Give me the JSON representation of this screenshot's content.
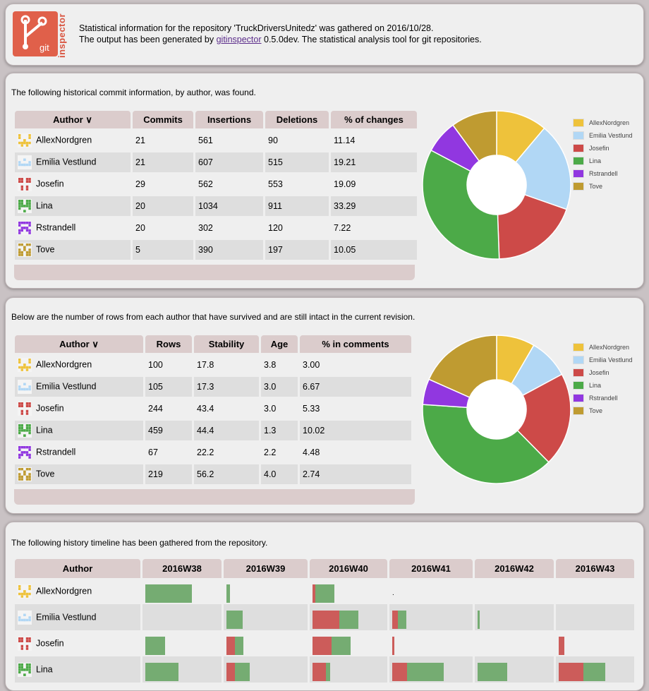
{
  "header": {
    "logo_text": "git",
    "logo_side": "inspector",
    "line1": "Statistical information for the repository 'TruckDriversUnitedz' was gathered on 2016/10/28.",
    "line2_prefix": "The output has been generated by ",
    "line2_link": "gitinspector",
    "line2_suffix": " 0.5.0dev. The statistical analysis tool for git repositories."
  },
  "colors": {
    "AllexNordgren": "#eec23b",
    "Emilia Vestlund": "#b1d7f5",
    "Josefin": "#cd4a48",
    "Lina": "#4caa48",
    "Rstrandell": "#9137e0",
    "Tove": "#bf9b31",
    "insert_bar": "#75ac72",
    "delete_bar": "#cc5c5a"
  },
  "blame_hist": {
    "intro": "The following historical commit information, by author, was found.",
    "headers": [
      "Author ∨",
      "Commits",
      "Insertions",
      "Deletions",
      "% of changes"
    ],
    "rows": [
      {
        "author": "AllexNordgren",
        "commits": "21",
        "insertions": "561",
        "deletions": "90",
        "pct": "11.14"
      },
      {
        "author": "Emilia Vestlund",
        "commits": "21",
        "insertions": "607",
        "deletions": "515",
        "pct": "19.21"
      },
      {
        "author": "Josefin",
        "commits": "29",
        "insertions": "562",
        "deletions": "553",
        "pct": "19.09"
      },
      {
        "author": "Lina",
        "commits": "20",
        "insertions": "1034",
        "deletions": "911",
        "pct": "33.29"
      },
      {
        "author": "Rstrandell",
        "commits": "20",
        "insertions": "302",
        "deletions": "120",
        "pct": "7.22"
      },
      {
        "author": "Tove",
        "commits": "5",
        "insertions": "390",
        "deletions": "197",
        "pct": "10.05"
      }
    ]
  },
  "blame": {
    "intro": "Below are the number of rows from each author that have survived and are still intact in the current revision.",
    "headers": [
      "Author ∨",
      "Rows",
      "Stability",
      "Age",
      "% in comments"
    ],
    "rows": [
      {
        "author": "AllexNordgren",
        "rows": "100",
        "stability": "17.8",
        "age": "3.8",
        "comments": "3.00"
      },
      {
        "author": "Emilia Vestlund",
        "rows": "105",
        "stability": "17.3",
        "age": "3.0",
        "comments": "6.67"
      },
      {
        "author": "Josefin",
        "rows": "244",
        "stability": "43.4",
        "age": "3.0",
        "comments": "5.33"
      },
      {
        "author": "Lina",
        "rows": "459",
        "stability": "44.4",
        "age": "1.3",
        "comments": "10.02"
      },
      {
        "author": "Rstrandell",
        "rows": "67",
        "stability": "22.2",
        "age": "2.2",
        "comments": "4.48"
      },
      {
        "author": "Tove",
        "rows": "219",
        "stability": "56.2",
        "age": "4.0",
        "comments": "2.74"
      }
    ]
  },
  "legend": [
    "AllexNordgren",
    "Emilia Vestlund",
    "Josefin",
    "Lina",
    "Rstrandell",
    "Tove"
  ],
  "chart_data": [
    {
      "type": "pie",
      "donut": true,
      "categories": [
        "AllexNordgren",
        "Emilia Vestlund",
        "Josefin",
        "Lina",
        "Rstrandell",
        "Tove"
      ],
      "values": [
        11.14,
        19.21,
        19.09,
        33.29,
        7.22,
        10.05
      ],
      "legend": "right"
    },
    {
      "type": "pie",
      "donut": true,
      "categories": [
        "AllexNordgren",
        "Emilia Vestlund",
        "Josefin",
        "Lina",
        "Rstrandell",
        "Tove"
      ],
      "values": [
        100,
        105,
        244,
        459,
        67,
        219
      ],
      "legend": "right"
    }
  ],
  "timeline": {
    "intro": "The following history timeline has been gathered from the repository.",
    "author_header": "Author",
    "weeks": [
      "2016W38",
      "2016W39",
      "2016W40",
      "2016W41",
      "2016W42",
      "2016W43"
    ],
    "rows": [
      {
        "author": "AllexNordgren",
        "bars": [
          {
            "del": 0,
            "ins": 0.6
          },
          {
            "del": 0,
            "ins": 0.04
          },
          {
            "del": 0.04,
            "ins": 0.25
          },
          {
            "dot": true
          },
          {
            "del": 0,
            "ins": 0
          },
          {
            "del": 0,
            "ins": 0
          }
        ]
      },
      {
        "author": "Emilia Vestlund",
        "bars": [
          {
            "del": 0,
            "ins": 0
          },
          {
            "del": 0,
            "ins": 0.2
          },
          {
            "del": 0.35,
            "ins": 0.25
          },
          {
            "del": 0.07,
            "ins": 0.1
          },
          {
            "del": 0,
            "ins": 0.03
          },
          {
            "del": 0,
            "ins": 0
          }
        ]
      },
      {
        "author": "Josefin",
        "bars": [
          {
            "del": 0,
            "ins": 0.25
          },
          {
            "del": 0.1,
            "ins": 0.1
          },
          {
            "del": 0.25,
            "ins": 0.25
          },
          {
            "del": 0.03,
            "ins": 0
          },
          {
            "del": 0,
            "ins": 0
          },
          {
            "del": 0.07,
            "ins": 0
          }
        ]
      },
      {
        "author": "Lina",
        "bars": [
          {
            "del": 0,
            "ins": 0.43
          },
          {
            "del": 0.1,
            "ins": 0.18
          },
          {
            "del": 0.18,
            "ins": 0.06
          },
          {
            "del": 0.18,
            "ins": 0.45
          },
          {
            "del": 0,
            "ins": 0.38
          },
          {
            "del": 0.32,
            "ins": 0.28
          }
        ]
      }
    ]
  }
}
